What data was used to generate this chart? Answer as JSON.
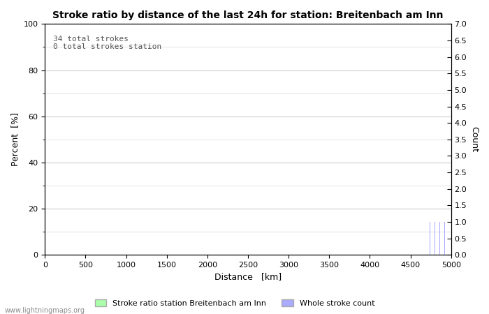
{
  "title": "Stroke ratio by distance of the last 24h for station: Breitenbach am Inn",
  "annotation_lines": [
    "34 total strokes",
    "0 total strokes station"
  ],
  "xlabel": "Distance   [km]",
  "ylabel_left": "Percent  [%]",
  "ylabel_right": "Count",
  "x_min": 0,
  "x_max": 5000,
  "y_left_min": 0,
  "y_left_max": 100,
  "y_right_min": 0.0,
  "y_right_max": 7.0,
  "y_left_ticks": [
    0,
    20,
    40,
    60,
    80,
    100
  ],
  "y_left_minor_ticks": [
    10,
    30,
    50,
    70,
    90
  ],
  "x_ticks": [
    0,
    500,
    1000,
    1500,
    2000,
    2500,
    3000,
    3500,
    4000,
    4500,
    5000
  ],
  "y_right_ticks": [
    0.0,
    0.5,
    1.0,
    1.5,
    2.0,
    2.5,
    3.0,
    3.5,
    4.0,
    4.5,
    5.0,
    5.5,
    6.0,
    6.5,
    7.0
  ],
  "stroke_count_color": "#aaaaff",
  "stroke_ratio_color": "#aaffaa",
  "background_color": "#ffffff",
  "plot_bg_color": "#ffffff",
  "grid_color": "#cccccc",
  "watermark": "www.lightningmaps.org",
  "legend_ratio_label": "Stroke ratio station Breitenbach am Inn",
  "legend_count_label": "Whole stroke count",
  "stroke_distances": [
    4700,
    4720,
    4740,
    4750,
    4760,
    4770,
    4780,
    4790,
    4795,
    4800,
    4805,
    4810,
    4815,
    4820,
    4825,
    4830,
    4835,
    4840,
    4845,
    4850,
    4855,
    4860,
    4865,
    4870,
    4875,
    4880,
    4885,
    4890,
    4895,
    4900,
    4910,
    4920,
    4930,
    4950
  ],
  "title_fontsize": 10,
  "label_fontsize": 9,
  "tick_fontsize": 8,
  "annotation_fontsize": 8
}
